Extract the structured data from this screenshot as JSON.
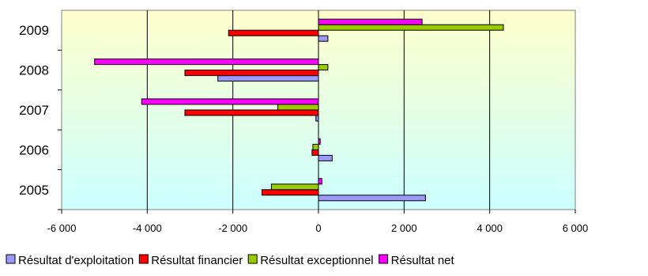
{
  "chart_data": {
    "type": "bar",
    "orientation": "horizontal",
    "categories": [
      "2005",
      "2006",
      "2007",
      "2008",
      "2009"
    ],
    "series": [
      {
        "name": "Résultat d'exploitation",
        "color": "#9999ff",
        "values": [
          2500,
          320,
          -60,
          -2350,
          220
        ]
      },
      {
        "name": "Résultat financier",
        "color": "#ff0000",
        "values": [
          -1320,
          -150,
          -3120,
          -3120,
          -2100
        ]
      },
      {
        "name": "Résultat exceptionnel",
        "color": "#99cc00",
        "values": [
          -1100,
          -130,
          -950,
          220,
          4320
        ]
      },
      {
        "name": "Résultat net",
        "color": "#ff00ff",
        "values": [
          80,
          40,
          -4130,
          -5230,
          2420
        ]
      }
    ],
    "x_ticks": [
      "-6 000",
      "-4 000",
      "-2 000",
      "0",
      "2 000",
      "4 000",
      "6 000"
    ],
    "xlim": [
      -6000,
      6000
    ],
    "grid": true,
    "legend_position": "bottom",
    "title": "",
    "xlabel": "",
    "ylabel": ""
  }
}
